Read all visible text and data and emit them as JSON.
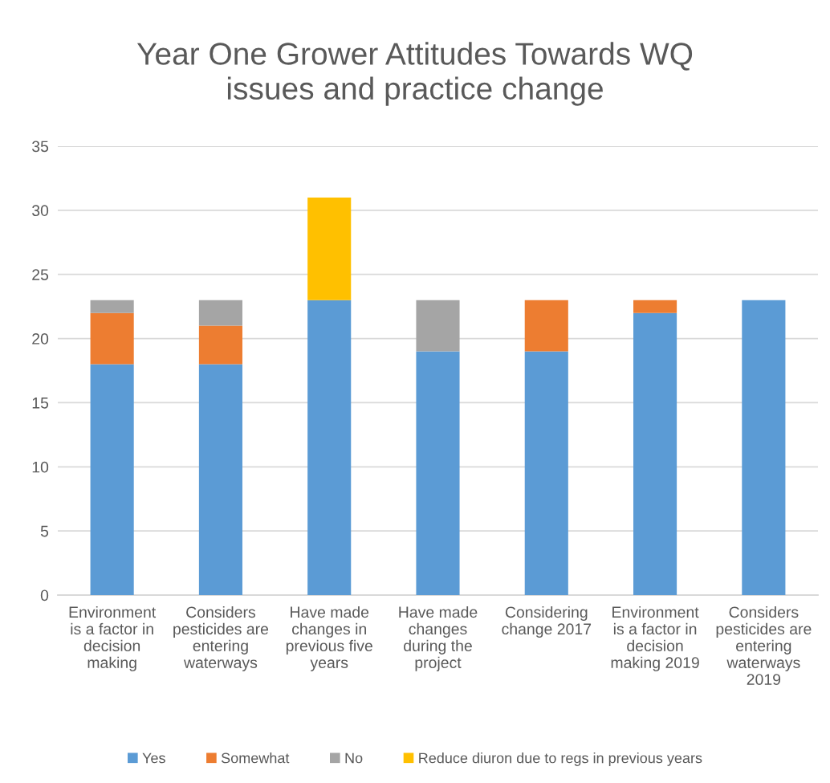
{
  "chart_data": {
    "type": "bar",
    "title": "Year One Grower Attitudes Towards WQ\nissues and practice change",
    "categories": [
      "Environment\nis a factor in\ndecision\nmaking",
      "Considers\npesticides are\nentering\nwaterways",
      "Have made\nchanges in\nprevious five\nyears",
      "Have made\nchanges\nduring the\nproject",
      "Considering\nchange 2017",
      "Environment\nis a factor in\ndecision\nmaking 2019",
      "Considers\npesticides are\nentering\nwaterways\n2019"
    ],
    "series": [
      {
        "name": "Yes",
        "color": "#5b9bd5",
        "values": [
          18,
          18,
          23,
          19,
          19,
          22,
          23
        ]
      },
      {
        "name": "Somewhat",
        "color": "#ed7d31",
        "values": [
          4,
          3,
          null,
          null,
          4,
          1,
          null
        ]
      },
      {
        "name": "No",
        "color": "#a5a5a5",
        "values": [
          1,
          2,
          null,
          4,
          null,
          null,
          null
        ]
      },
      {
        "name": "Reduce diuron due to regs in previous years",
        "color": "#ffc000",
        "values": [
          null,
          null,
          8,
          null,
          null,
          null,
          null
        ]
      }
    ],
    "stacked": true,
    "ylim": [
      0,
      35
    ],
    "yticks": [
      0,
      5,
      10,
      15,
      20,
      25,
      30,
      35
    ],
    "grid": "y",
    "legend": "bottom"
  }
}
